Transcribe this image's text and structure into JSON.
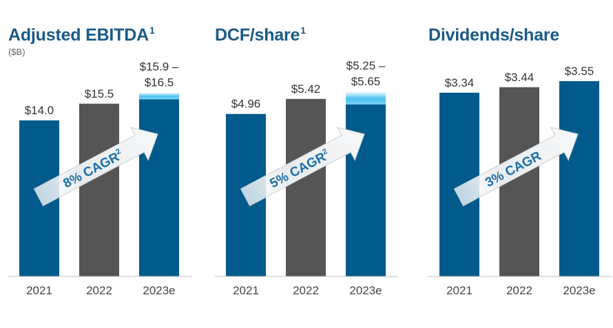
{
  "colors": {
    "title": "#1a5a86",
    "blue_bar": "#005b8c",
    "gray_bar": "#555555",
    "range_band": "#4cc2f2",
    "cagr_text": "#1a6fa8",
    "value_text": "#333333",
    "axis_text": "#444444"
  },
  "chart_data": [
    {
      "type": "bar",
      "title": "Adjusted EBITDA",
      "title_footnote": "1",
      "unit_label": "($B)",
      "categories": [
        "2021",
        "2022",
        "2023e"
      ],
      "values": [
        14.0,
        15.5,
        15.9
      ],
      "range_top": [
        null,
        null,
        16.5
      ],
      "value_labels": [
        "$14.0",
        "$15.5",
        "$15.9 –\n$16.5"
      ],
      "bar_colors": [
        "blue",
        "gray",
        "blue"
      ],
      "ylim": [
        0,
        19.25
      ],
      "cagr": {
        "text": "8% CAGR",
        "footnote": "2"
      }
    },
    {
      "type": "bar",
      "title": "DCF/share",
      "title_footnote": "1",
      "unit_label": "",
      "categories": [
        "2021",
        "2022",
        "2023e"
      ],
      "values": [
        4.96,
        5.42,
        5.25
      ],
      "range_top": [
        null,
        null,
        5.65
      ],
      "value_labels": [
        "$4.96",
        "$5.42",
        "$5.25 –\n$5.65"
      ],
      "bar_colors": [
        "blue",
        "gray",
        "blue"
      ],
      "ylim": [
        0,
        6.55
      ],
      "cagr": {
        "text": "5% CAGR",
        "footnote": "2"
      }
    },
    {
      "type": "bar",
      "title": "Dividends/share",
      "title_footnote": "",
      "unit_label": "",
      "categories": [
        "2021",
        "2022",
        "2023e"
      ],
      "values": [
        3.34,
        3.44,
        3.55
      ],
      "range_top": [
        null,
        null,
        null
      ],
      "value_labels": [
        "$3.34",
        "$3.44",
        "$3.55"
      ],
      "bar_colors": [
        "blue",
        "gray",
        "blue"
      ],
      "ylim": [
        0,
        3.9
      ],
      "cagr": {
        "text": "3% CAGR",
        "footnote": ""
      }
    }
  ]
}
